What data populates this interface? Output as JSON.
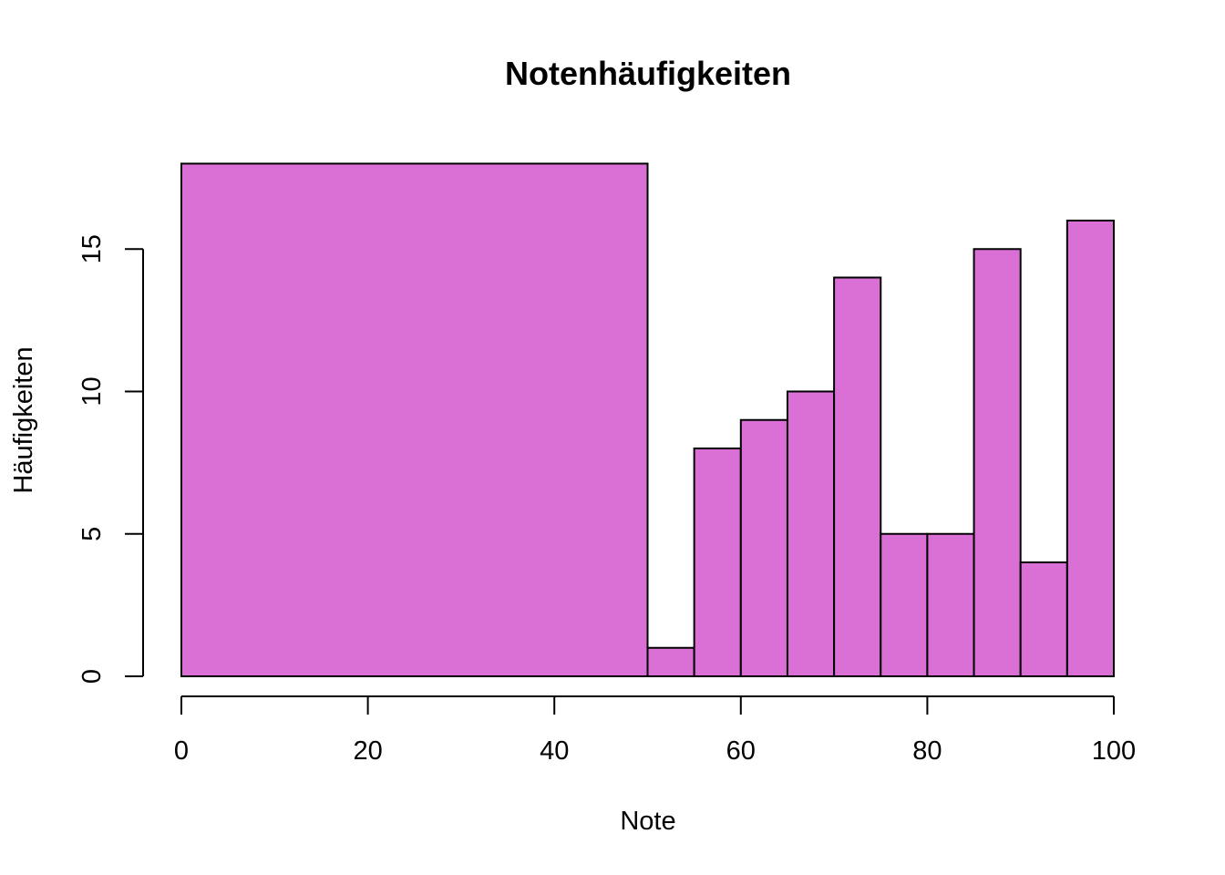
{
  "chart_data": {
    "type": "bar",
    "title": "Notenhäufigkeiten",
    "xlabel": "Note",
    "ylabel": "Häufigkeiten",
    "bins": [
      {
        "from": 0,
        "to": 50,
        "count": 18
      },
      {
        "from": 50,
        "to": 55,
        "count": 1
      },
      {
        "from": 55,
        "to": 60,
        "count": 8
      },
      {
        "from": 60,
        "to": 65,
        "count": 9
      },
      {
        "from": 65,
        "to": 70,
        "count": 10
      },
      {
        "from": 70,
        "to": 75,
        "count": 14
      },
      {
        "from": 75,
        "to": 80,
        "count": 5
      },
      {
        "from": 80,
        "to": 85,
        "count": 5
      },
      {
        "from": 85,
        "to": 90,
        "count": 15
      },
      {
        "from": 90,
        "to": 95,
        "count": 4
      },
      {
        "from": 95,
        "to": 100,
        "count": 16
      }
    ],
    "xlim": [
      0,
      100
    ],
    "ylim": [
      0,
      18
    ],
    "x_ticks": [
      0,
      20,
      40,
      60,
      80,
      100
    ],
    "y_ticks": [
      0,
      5,
      10,
      15
    ],
    "grid": false,
    "colors": {
      "bar_fill": "#DA70D6",
      "bar_stroke": "#000000"
    }
  }
}
